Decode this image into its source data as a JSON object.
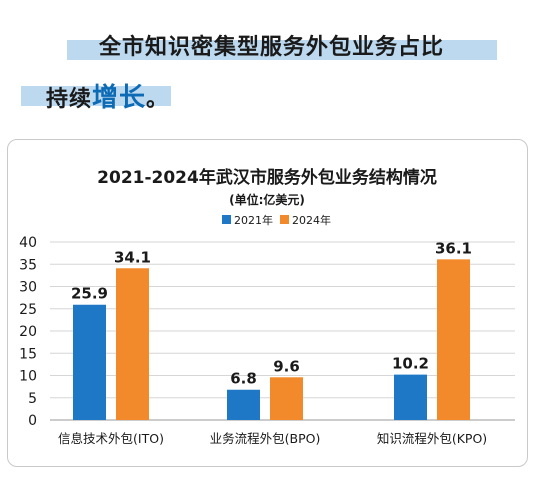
{
  "headline": {
    "line1": "全市知识密集型服务外包业务占比",
    "line2_prefix": "持续",
    "line2_accent": "增长",
    "line2_suffix": "。"
  },
  "colors": {
    "series1": "#1f78c6",
    "series2": "#f28a2c",
    "headline_accent": "#0d6bb5",
    "highlight": "#bcd9ef"
  },
  "chart_data": {
    "type": "bar",
    "title": "2021-2024年武汉市服务外包业务结构情况",
    "subtitle": "(单位:亿美元)",
    "categories": [
      "信息技术外包(ITO)",
      "业务流程外包(BPO)",
      "知识流程外包(KPO)"
    ],
    "series": [
      {
        "name": "2021年",
        "values": [
          25.9,
          6.8,
          10.2
        ]
      },
      {
        "name": "2024年",
        "values": [
          34.1,
          9.6,
          36.1
        ]
      }
    ],
    "ylim": [
      0,
      40
    ],
    "yticks": [
      0,
      5,
      10,
      15,
      20,
      25,
      30,
      35,
      40
    ],
    "grid": true,
    "legend_position": "top-center"
  }
}
